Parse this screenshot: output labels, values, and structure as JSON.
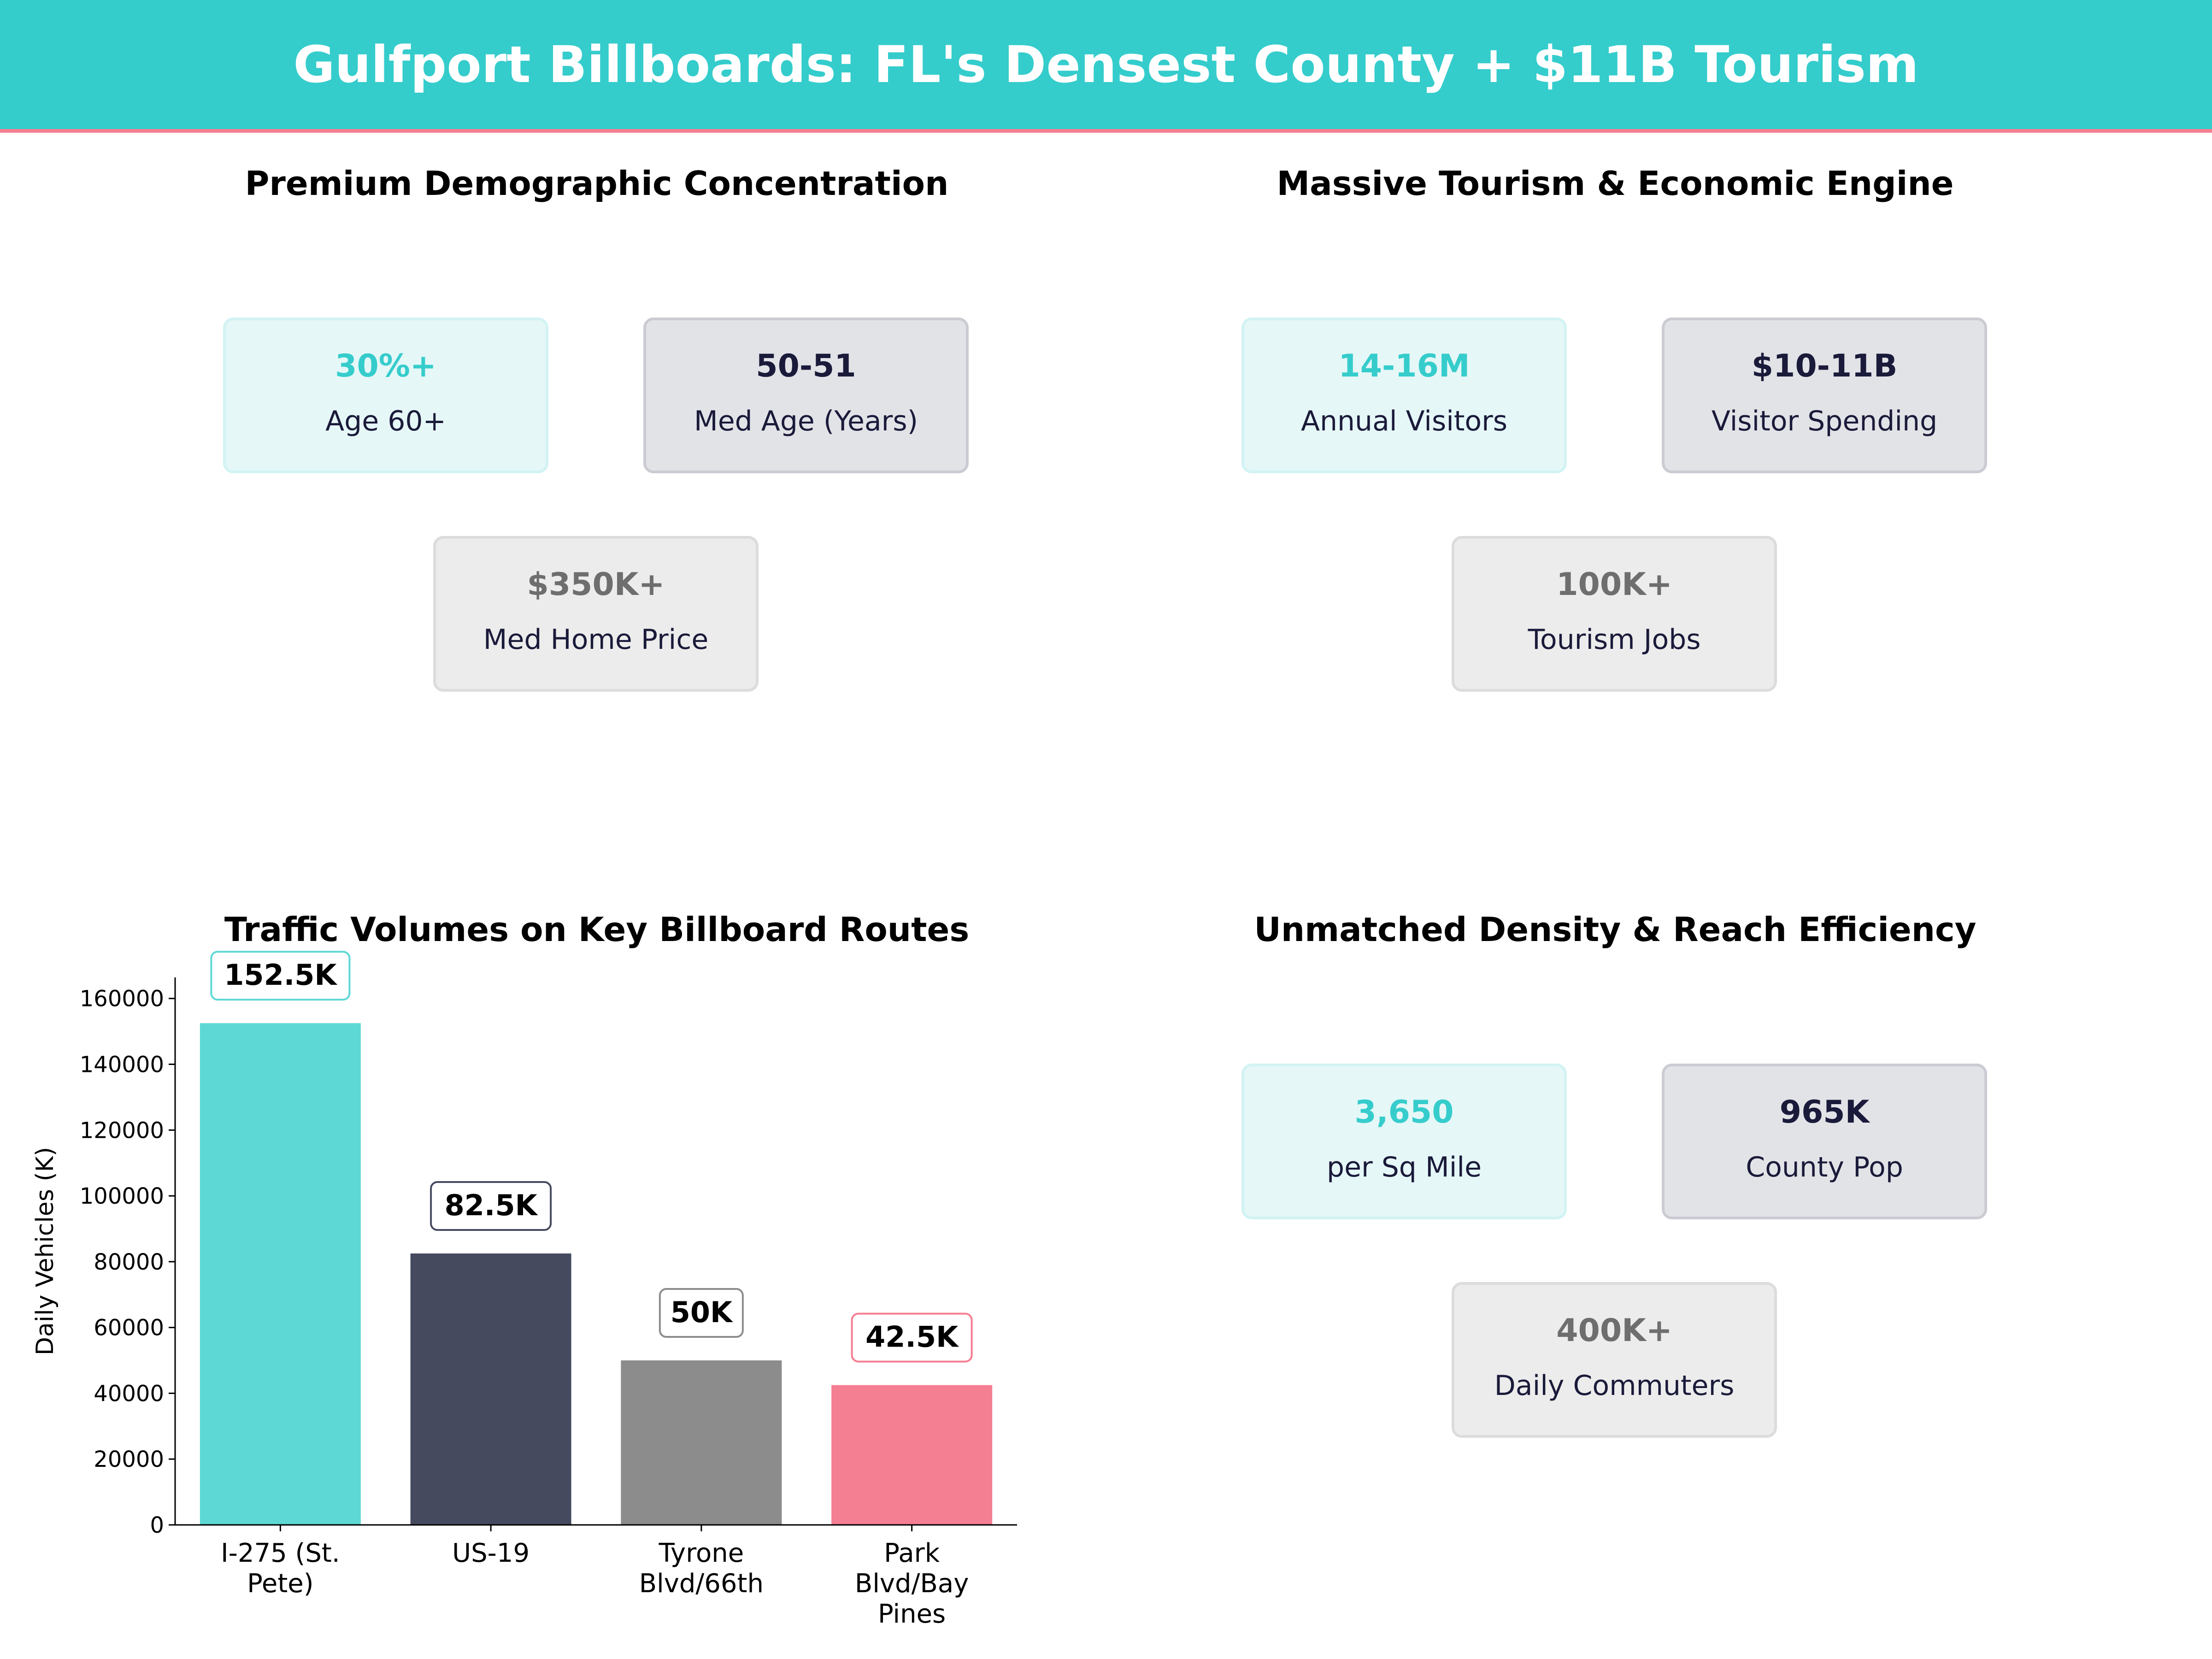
{
  "header": {
    "title": "Gulfport Billboards: FL's Densest County + $11B Tourism"
  },
  "panels": [
    {
      "title": "Premium Demographic Concentration",
      "cards": [
        {
          "value": "30%+",
          "label": "Age 60+"
        },
        {
          "value": "50-51",
          "label": "Med Age (Years)"
        },
        {
          "value": "$350K+",
          "label": "Med Home Price"
        }
      ]
    },
    {
      "title": "Massive Tourism & Economic Engine",
      "cards": [
        {
          "value": "14-16M",
          "label": "Annual Visitors"
        },
        {
          "value": "$10-11B",
          "label": "Visitor Spending"
        },
        {
          "value": "100K+",
          "label": "Tourism Jobs"
        }
      ]
    },
    {
      "title": "Unmatched Density & Reach Efficiency",
      "cards": [
        {
          "value": "3,650",
          "label": "per Sq Mile"
        },
        {
          "value": "965K",
          "label": "County Pop"
        },
        {
          "value": "400K+",
          "label": "Daily Commuters"
        }
      ]
    }
  ],
  "colors": {
    "accent": "#35cccc",
    "dark": "#464a5f",
    "gray": "#8c8c8c",
    "pink": "#f47e92"
  },
  "chart_data": {
    "type": "bar",
    "title": "Traffic Volumes on Key Billboard Routes",
    "xlabel": "",
    "ylabel": "Daily Vehicles (K)",
    "categories": [
      [
        "I-275 (St.",
        "Pete)"
      ],
      [
        "US-19"
      ],
      [
        "Tyrone",
        "Blvd/66th"
      ],
      [
        "Park",
        "Blvd/Bay",
        "Pines"
      ]
    ],
    "values": [
      152500,
      82500,
      50000,
      42500
    ],
    "data_labels": [
      "152.5K",
      "82.5K",
      "50K",
      "42.5K"
    ],
    "bar_colors": [
      "#5dd8d4",
      "#464a5f",
      "#8c8c8c",
      "#f47e92"
    ],
    "label_border_colors": [
      "#5dd8d4",
      "#464a5f",
      "#8c8c8c",
      "#f47e92"
    ],
    "yticks": [
      0,
      20000,
      40000,
      60000,
      80000,
      100000,
      120000,
      140000,
      160000
    ],
    "ylim": [
      0,
      166400
    ],
    "grid": false
  }
}
